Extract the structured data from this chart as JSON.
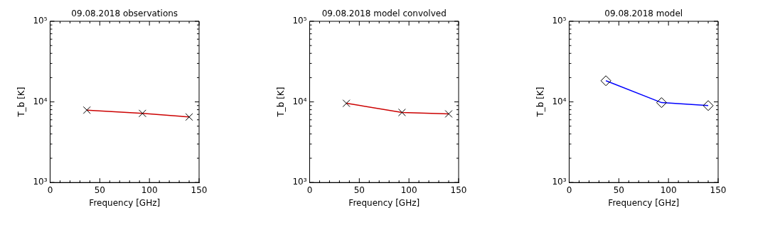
{
  "chart_data": [
    {
      "type": "line",
      "title": "09.08.2018 observations",
      "xlabel": "Frequency [GHz]",
      "ylabel": "T_b [K]",
      "x": [
        37,
        93,
        140
      ],
      "series": [
        {
          "color": "#cc0000",
          "values": [
            7900,
            7200,
            6500
          ]
        }
      ],
      "marker": "cross",
      "log": "y",
      "grid": false,
      "legend": false,
      "xlim": [
        0,
        150
      ],
      "xticks": [
        0,
        {
          "value": 10,
          "label": null
        },
        {
          "value": 20,
          "label": null
        },
        {
          "value": 30,
          "label": null
        },
        {
          "value": 40,
          "label": null
        },
        50,
        {
          "value": 60,
          "label": null
        },
        {
          "value": 70,
          "label": null
        },
        {
          "value": 80,
          "label": null
        },
        {
          "value": 90,
          "label": null
        },
        100,
        {
          "value": 110,
          "label": null
        },
        {
          "value": 120,
          "label": null
        },
        {
          "value": 130,
          "label": null
        },
        {
          "value": 140,
          "label": null
        },
        150
      ],
      "ylim": [
        1000,
        100000
      ],
      "yticks": [
        {
          "value": 1000,
          "label": "10³"
        },
        {
          "value": 2000,
          "label": null
        },
        {
          "value": 3000,
          "label": null
        },
        {
          "value": 4000,
          "label": null
        },
        {
          "value": 5000,
          "label": null
        },
        {
          "value": 6000,
          "label": null
        },
        {
          "value": 7000,
          "label": null
        },
        {
          "value": 8000,
          "label": null
        },
        {
          "value": 9000,
          "label": null
        },
        {
          "value": 10000,
          "label": "10⁴"
        },
        {
          "value": 20000,
          "label": null
        },
        {
          "value": 30000,
          "label": null
        },
        {
          "value": 40000,
          "label": null
        },
        {
          "value": 50000,
          "label": null
        },
        {
          "value": 60000,
          "label": null
        },
        {
          "value": 70000,
          "label": null
        },
        {
          "value": 80000,
          "label": null
        },
        {
          "value": 90000,
          "label": null
        },
        {
          "value": 100000,
          "label": "10⁵"
        }
      ]
    },
    {
      "type": "line",
      "title": "09.08.2018 model convolved",
      "xlabel": "Frequency [GHz]",
      "ylabel": "T_b [K]",
      "x": [
        37,
        93,
        140
      ],
      "series": [
        {
          "color": "#cc0000",
          "values": [
            9600,
            7400,
            7100
          ]
        }
      ],
      "marker": "cross",
      "log": "y",
      "grid": false,
      "legend": false,
      "xlim": [
        0,
        150
      ],
      "xticks": [
        0,
        {
          "value": 10,
          "label": null
        },
        {
          "value": 20,
          "label": null
        },
        {
          "value": 30,
          "label": null
        },
        {
          "value": 40,
          "label": null
        },
        50,
        {
          "value": 60,
          "label": null
        },
        {
          "value": 70,
          "label": null
        },
        {
          "value": 80,
          "label": null
        },
        {
          "value": 90,
          "label": null
        },
        100,
        {
          "value": 110,
          "label": null
        },
        {
          "value": 120,
          "label": null
        },
        {
          "value": 130,
          "label": null
        },
        {
          "value": 140,
          "label": null
        },
        150
      ],
      "ylim": [
        1000,
        100000
      ],
      "yticks": [
        {
          "value": 1000,
          "label": "10³"
        },
        {
          "value": 2000,
          "label": null
        },
        {
          "value": 3000,
          "label": null
        },
        {
          "value": 4000,
          "label": null
        },
        {
          "value": 5000,
          "label": null
        },
        {
          "value": 6000,
          "label": null
        },
        {
          "value": 7000,
          "label": null
        },
        {
          "value": 8000,
          "label": null
        },
        {
          "value": 9000,
          "label": null
        },
        {
          "value": 10000,
          "label": "10⁴"
        },
        {
          "value": 20000,
          "label": null
        },
        {
          "value": 30000,
          "label": null
        },
        {
          "value": 40000,
          "label": null
        },
        {
          "value": 50000,
          "label": null
        },
        {
          "value": 60000,
          "label": null
        },
        {
          "value": 70000,
          "label": null
        },
        {
          "value": 80000,
          "label": null
        },
        {
          "value": 90000,
          "label": null
        },
        {
          "value": 100000,
          "label": "10⁵"
        }
      ]
    },
    {
      "type": "line",
      "title": "09.08.2018 model",
      "xlabel": "Frequency [GHz]",
      "ylabel": "T_b [K]",
      "x": [
        37,
        93,
        140
      ],
      "series": [
        {
          "color": "#0000ff",
          "values": [
            18300,
            9800,
            9000
          ]
        }
      ],
      "marker": "diamond",
      "log": "y",
      "grid": false,
      "legend": false,
      "xlim": [
        0,
        150
      ],
      "xticks": [
        0,
        {
          "value": 10,
          "label": null
        },
        {
          "value": 20,
          "label": null
        },
        {
          "value": 30,
          "label": null
        },
        {
          "value": 40,
          "label": null
        },
        50,
        {
          "value": 60,
          "label": null
        },
        {
          "value": 70,
          "label": null
        },
        {
          "value": 80,
          "label": null
        },
        {
          "value": 90,
          "label": null
        },
        100,
        {
          "value": 110,
          "label": null
        },
        {
          "value": 120,
          "label": null
        },
        {
          "value": 130,
          "label": null
        },
        {
          "value": 140,
          "label": null
        },
        150
      ],
      "ylim": [
        1000,
        100000
      ],
      "yticks": [
        {
          "value": 1000,
          "label": "10³"
        },
        {
          "value": 2000,
          "label": null
        },
        {
          "value": 3000,
          "label": null
        },
        {
          "value": 4000,
          "label": null
        },
        {
          "value": 5000,
          "label": null
        },
        {
          "value": 6000,
          "label": null
        },
        {
          "value": 7000,
          "label": null
        },
        {
          "value": 8000,
          "label": null
        },
        {
          "value": 9000,
          "label": null
        },
        {
          "value": 10000,
          "label": "10⁴"
        },
        {
          "value": 20000,
          "label": null
        },
        {
          "value": 30000,
          "label": null
        },
        {
          "value": 40000,
          "label": null
        },
        {
          "value": 50000,
          "label": null
        },
        {
          "value": 60000,
          "label": null
        },
        {
          "value": 70000,
          "label": null
        },
        {
          "value": 80000,
          "label": null
        },
        {
          "value": 90000,
          "label": null
        },
        {
          "value": 100000,
          "label": "10⁵"
        }
      ]
    }
  ]
}
